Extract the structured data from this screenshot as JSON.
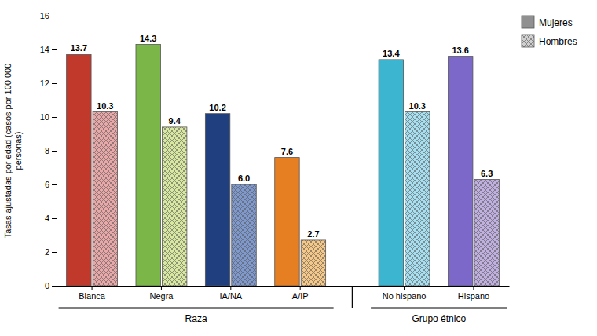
{
  "chart_data": {
    "type": "bar",
    "categories": [
      "Blanca",
      "Negra",
      "IA/NA",
      "A/IP",
      "No hispano",
      "Hispano"
    ],
    "series": [
      {
        "name": "Mujeres",
        "color": "#909090",
        "colors": [
          "#c0392b",
          "#7ab648",
          "#1f3f7f",
          "#e67e22",
          "#3bb5d0",
          "#7b68c8"
        ],
        "values": [
          13.7,
          14.3,
          10.2,
          7.6,
          13.4,
          13.6
        ]
      },
      {
        "name": "Hombres",
        "color": "#d0d0d0",
        "colors": [
          "#e8a8a8",
          "#d8e8a0",
          "#8099cc",
          "#f5c888",
          "#a8dff0",
          "#c0b0e0"
        ],
        "values": [
          10.3,
          9.4,
          6.0,
          2.7,
          10.3,
          6.3
        ],
        "value_labels": [
          "10.3",
          "9.4",
          "6.0",
          "2.7",
          "10.3",
          "6.3"
        ]
      }
    ],
    "y_label": "Tasas ajustadas por edad (casos por 100,000\npersonas)",
    "ylim": [
      0,
      16
    ],
    "yticks": [
      0,
      2,
      4,
      6,
      8,
      10,
      12,
      14,
      16
    ],
    "annotations": [
      {
        "text": "Raza",
        "from": "Blanca",
        "to": "A/IP"
      },
      {
        "text": "Grupo étnico",
        "from": "No hispano",
        "to": "Hispano"
      }
    ],
    "data_labels": true,
    "grid": false,
    "legend": "upper right"
  }
}
